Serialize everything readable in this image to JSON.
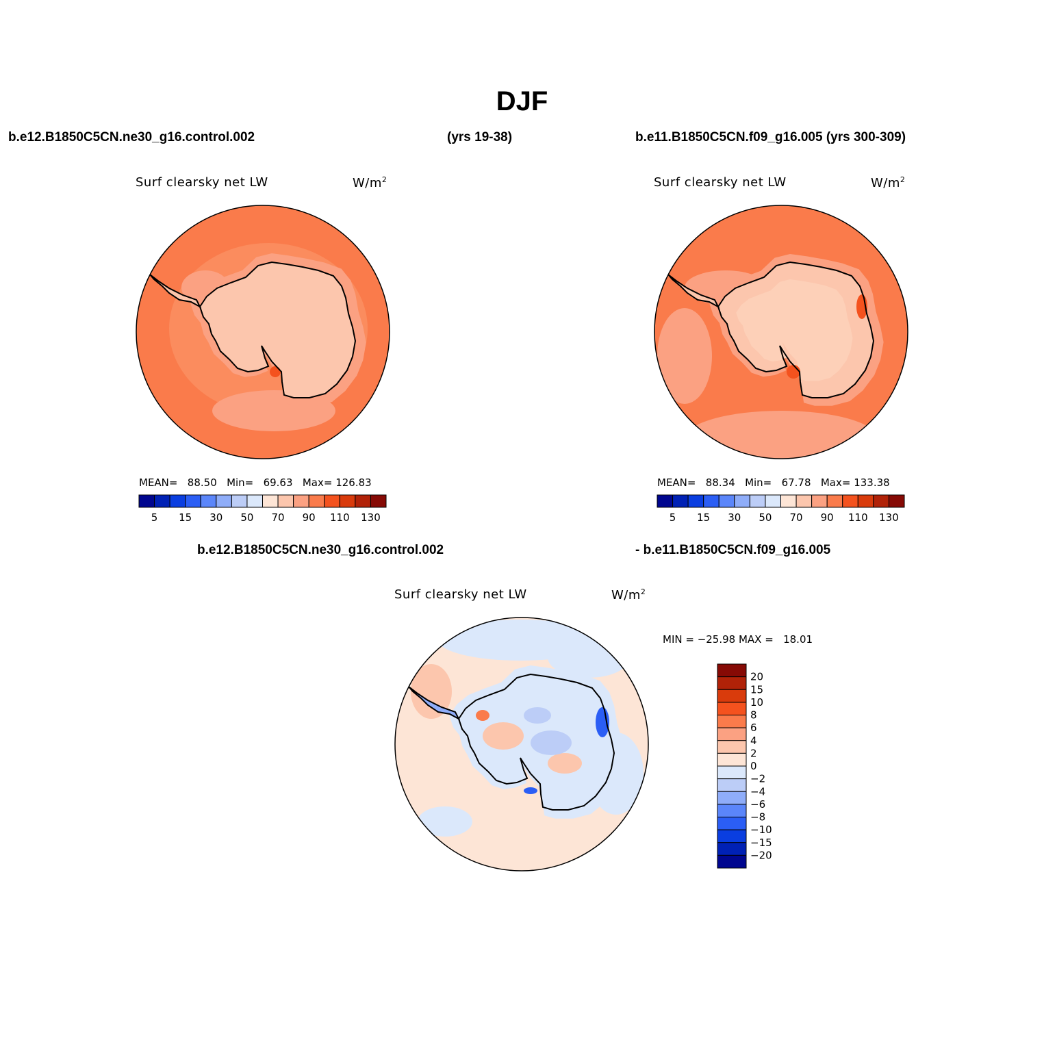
{
  "figure": {
    "season": "DJF",
    "case_a": "b.e12.B1850C5CN.ne30_g16.control.002",
    "case_a_years": "(yrs 19-38)",
    "case_b": "b.e11.B1850C5CN.f09_g16.005 (yrs 300-309)",
    "diff_left": "b.e12.B1850C5CN.ne30_g16.control.002",
    "diff_right": "- b.e11.B1850C5CN.f09_g16.005"
  },
  "panels": [
    {
      "title": "Surf clearsky net LW",
      "units": "W/m",
      "units_sup": "2",
      "mean_label": "MEAN=",
      "mean": "88.50",
      "min_label": "Min=",
      "min": "69.63",
      "max_label": "Max=",
      "max": "126.83"
    },
    {
      "title": "Surf clearsky net LW",
      "units": "W/m",
      "units_sup": "2",
      "mean_label": "MEAN=",
      "mean": "88.34",
      "min_label": "Min=",
      "min": "67.78",
      "max_label": "Max=",
      "max": "133.38"
    },
    {
      "title": "Surf clearsky net LW",
      "units": "W/m",
      "units_sup": "2",
      "minmax_text": "MIN = −25.98 MAX =   18.01"
    }
  ],
  "colorbar_abs": {
    "colors": [
      "#00068f",
      "#0021b5",
      "#0a3ee0",
      "#2b5ef5",
      "#5b86fa",
      "#8fadf9",
      "#bccdf7",
      "#dbe8fb",
      "#fde5d6",
      "#fcc6ad",
      "#fba182",
      "#fa7b4b",
      "#f4521e",
      "#d93b0c",
      "#b12208",
      "#860a05"
    ],
    "labels": [
      "5",
      "15",
      "30",
      "50",
      "70",
      "90",
      "110",
      "130"
    ]
  },
  "colorbar_diff": {
    "colors": [
      "#860a05",
      "#b12208",
      "#d93b0c",
      "#f4521e",
      "#fa7b4b",
      "#fba182",
      "#fcc6ad",
      "#fde5d6",
      "#dbe8fb",
      "#bccdf7",
      "#8fadf9",
      "#5b86fa",
      "#2b5ef5",
      "#0a3ee0",
      "#0021b5",
      "#00068f"
    ],
    "labels": [
      "20",
      "15",
      "10",
      "8",
      "6",
      "4",
      "2",
      "0",
      "−2",
      "−4",
      "−6",
      "−8",
      "−10",
      "−15",
      "−20"
    ]
  },
  "map_colors": {
    "ocean_abs": "#fa7b4b",
    "ocean_outer": "#fb8c5e",
    "coast_band": "#fba182",
    "land_abs": "#fcc6ad",
    "land_inner": "#fdd0b8",
    "hot_spot": "#f4521e",
    "diff_ocean": "#fde5d6",
    "diff_blue_light": "#dbe8fb",
    "diff_blue_mid": "#8fadf9",
    "diff_blue_dark": "#2b5ef5",
    "diff_red_light": "#fcc6ad",
    "diff_red_mid": "#fa7b4b",
    "coastline": "#000000"
  }
}
